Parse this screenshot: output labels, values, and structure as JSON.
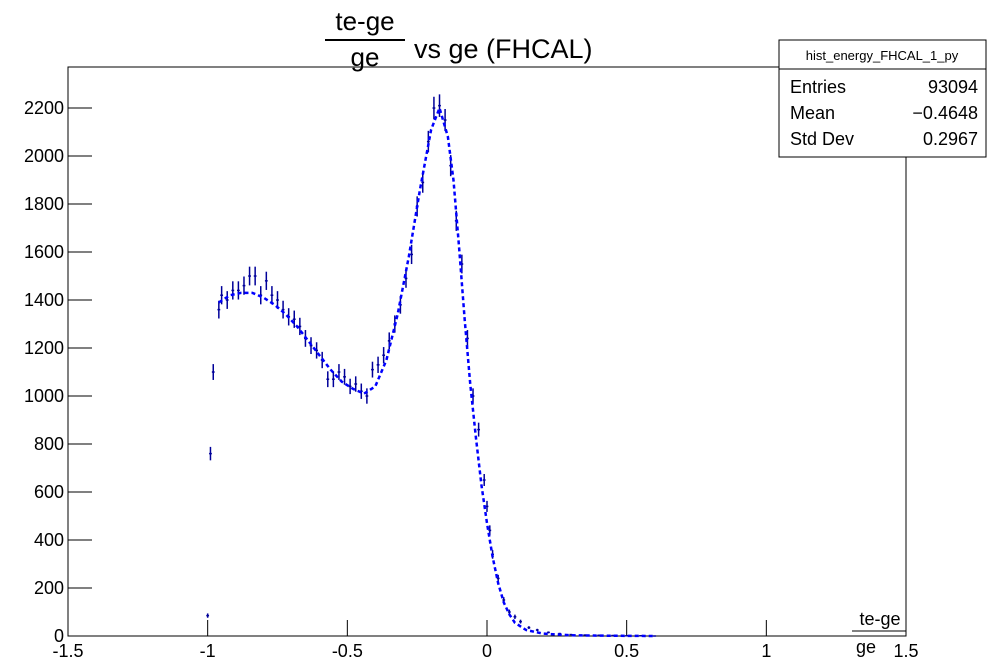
{
  "chart_data": {
    "type": "scatter",
    "title": {
      "numerator": "te-ge",
      "denominator": "ge",
      "text": "vs ge (FHCAL)"
    },
    "x_label": {
      "numerator": "te-ge",
      "denominator": "ge"
    },
    "xlim": [
      -1.5,
      1.5
    ],
    "xticks": [
      -1.5,
      -1,
      -0.5,
      0,
      0.5,
      1,
      1.5
    ],
    "ylim": [
      0,
      2371
    ],
    "yticks": [
      0,
      200,
      400,
      600,
      800,
      1000,
      1200,
      1400,
      1600,
      1800,
      2000,
      2200
    ],
    "bin_width": 0.01,
    "series": [
      {
        "color": "#000099",
        "x": [
          -1.0,
          -0.99,
          -0.98,
          -0.96,
          -0.95,
          -0.93,
          -0.91,
          -0.89,
          -0.87,
          -0.85,
          -0.83,
          -0.81,
          -0.79,
          -0.77,
          -0.75,
          -0.73,
          -0.71,
          -0.69,
          -0.67,
          -0.65,
          -0.63,
          -0.61,
          -0.59,
          -0.57,
          -0.55,
          -0.53,
          -0.51,
          -0.49,
          -0.47,
          -0.45,
          -0.43,
          -0.41,
          -0.39,
          -0.37,
          -0.35,
          -0.33,
          -0.31,
          -0.29,
          -0.27,
          -0.25,
          -0.23,
          -0.21,
          -0.19,
          -0.17,
          -0.15,
          -0.13,
          -0.11,
          -0.09,
          -0.07,
          -0.05,
          -0.03,
          -0.01,
          0.0,
          0.01,
          0.02,
          0.04,
          0.06,
          0.08,
          0.1,
          0.12,
          0.15,
          0.18,
          0.22,
          0.26,
          0.3,
          0.35,
          0.4,
          0.45,
          0.5,
          0.55,
          0.6
        ],
        "values": [
          85,
          760,
          1100,
          1360,
          1420,
          1400,
          1440,
          1440,
          1460,
          1500,
          1500,
          1420,
          1480,
          1420,
          1400,
          1360,
          1330,
          1320,
          1290,
          1240,
          1210,
          1190,
          1150,
          1070,
          1070,
          1100,
          1080,
          1040,
          1050,
          1020,
          1000,
          1110,
          1130,
          1170,
          1230,
          1300,
          1380,
          1490,
          1590,
          1790,
          1890,
          2060,
          2200,
          2210,
          2150,
          1960,
          1730,
          1550,
          1240,
          1000,
          860,
          650,
          540,
          440,
          340,
          240,
          150,
          100,
          80,
          60,
          35,
          25,
          15,
          10,
          6,
          4,
          3,
          2,
          1,
          1,
          0
        ],
        "errors": [
          9,
          28,
          33,
          37,
          38,
          37,
          38,
          38,
          38,
          39,
          39,
          38,
          38,
          38,
          37,
          37,
          36,
          36,
          36,
          35,
          35,
          34,
          34,
          33,
          33,
          33,
          33,
          32,
          32,
          32,
          32,
          33,
          34,
          34,
          35,
          36,
          37,
          39,
          40,
          42,
          43,
          45,
          47,
          47,
          46,
          44,
          42,
          39,
          35,
          32,
          29,
          25,
          23,
          21,
          18,
          15,
          12,
          10,
          9,
          8,
          6,
          5,
          4,
          3,
          2,
          2,
          2,
          1,
          1,
          1,
          0
        ]
      },
      {
        "color": "#0000ff",
        "line_style": "dashed",
        "x": [
          -0.96,
          -0.92,
          -0.88,
          -0.84,
          -0.8,
          -0.76,
          -0.72,
          -0.68,
          -0.64,
          -0.6,
          -0.56,
          -0.52,
          -0.48,
          -0.44,
          -0.4,
          -0.36,
          -0.32,
          -0.28,
          -0.24,
          -0.2,
          -0.17,
          -0.14,
          -0.12,
          -0.1,
          -0.08,
          -0.06,
          -0.04,
          -0.02,
          0.0,
          0.02,
          0.04,
          0.06,
          0.08,
          0.1,
          0.14,
          0.2,
          0.3,
          0.45,
          0.6
        ],
        "values": [
          1390,
          1420,
          1430,
          1430,
          1410,
          1380,
          1340,
          1290,
          1230,
          1170,
          1110,
          1060,
          1030,
          1010,
          1040,
          1150,
          1340,
          1580,
          1860,
          2110,
          2200,
          2080,
          1900,
          1620,
          1320,
          1050,
          830,
          630,
          470,
          330,
          220,
          140,
          90,
          55,
          25,
          10,
          3,
          1,
          0
        ]
      }
    ],
    "stats": {
      "name": "hist_energy_FHCAL_1_py",
      "rows": [
        [
          "Entries",
          "93094"
        ],
        [
          "Mean",
          "−0.4648"
        ],
        [
          "Std Dev",
          "0.2967"
        ]
      ]
    }
  }
}
